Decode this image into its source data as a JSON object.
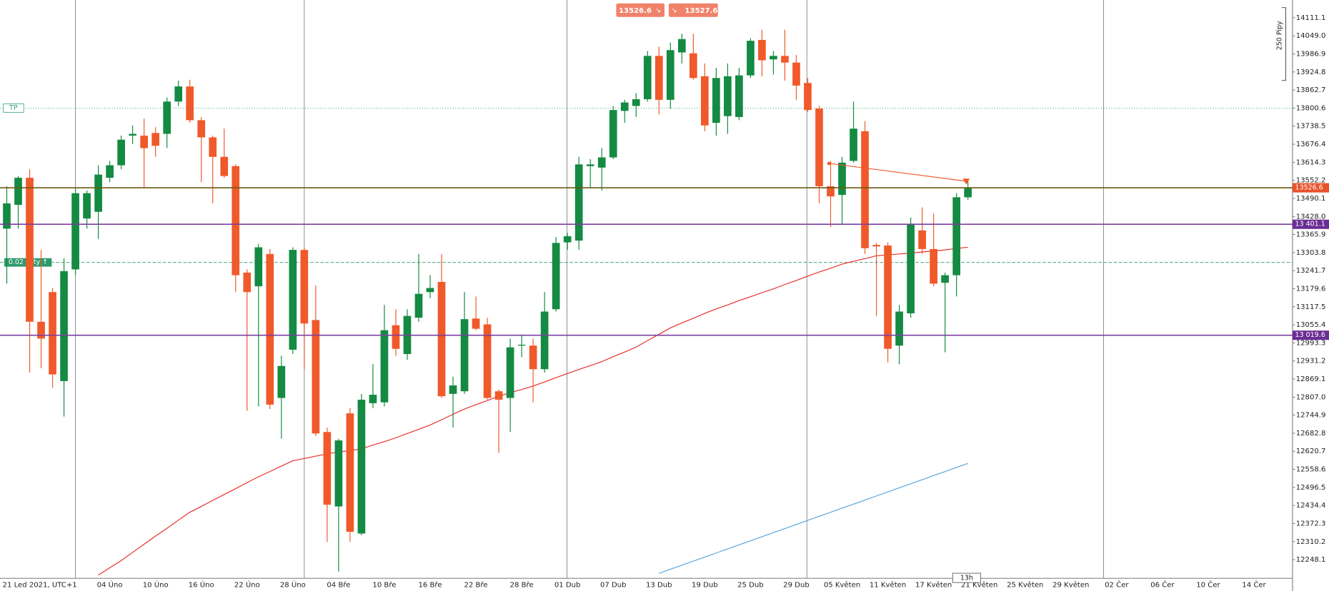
{
  "chart_data": {
    "type": "candlestick",
    "categories": [
      "21 Led 2021, UTC+1",
      null,
      null,
      null,
      null,
      null,
      null,
      null,
      null,
      "04 Úno",
      null,
      null,
      null,
      "10 Úno",
      null,
      null,
      null,
      "16 Úno",
      null,
      null,
      null,
      "22 Úno",
      null,
      null,
      null,
      "28 Úno",
      null,
      null,
      null,
      "04 Bře",
      null,
      null,
      null,
      "10 Bře",
      null,
      null,
      null,
      "16 Bře",
      null,
      null,
      null,
      "22 Bře",
      null,
      null,
      null,
      "28 Bře",
      null,
      null,
      null,
      "01 Dub",
      null,
      null,
      null,
      "07 Dub",
      null,
      null,
      null,
      "13 Dub",
      null,
      null,
      null,
      "19 Dub",
      null,
      null,
      null,
      "25 Dub",
      null,
      null,
      null,
      "29 Dub",
      null,
      null,
      null,
      "05 Květen",
      null,
      null,
      null,
      "11 Květen",
      null,
      null,
      null,
      "17 Květen",
      null,
      null,
      null,
      "21 Květen",
      null,
      null,
      null,
      "25 Květen",
      null,
      null,
      null,
      "29 Květen",
      null,
      null,
      null,
      "02 Čer",
      null,
      null,
      null,
      "06 Čer",
      null,
      null,
      null,
      "10 Čer",
      null,
      null,
      null,
      "14 Čer"
    ],
    "open": [
      13386,
      13468,
      13561,
      13066,
      13168,
      12862,
      13246,
      13421,
      13444,
      13561,
      13604,
      13706,
      13706,
      13715,
      13712,
      13823,
      13875,
      13759,
      13700,
      13633,
      13601,
      13235,
      13188,
      13299,
      12804,
      12970,
      13313,
      13072,
      12687,
      12431,
      12751,
      12338,
      12786,
      12789,
      13054,
      12955,
      13080,
      13168,
      13203,
      12818,
      12827,
      13077,
      13057,
      12827,
      12804,
      12984,
      12984,
      12903,
      13109,
      13339,
      13345,
      13601,
      13596,
      13631,
      13791,
      13808,
      13831,
      13980,
      13829,
      13992,
      13989,
      13910,
      13750,
      13773,
      13770,
      13913,
      14035,
      13968,
      13980,
      13957,
      13887,
      13799,
      13532,
      13502,
      13619,
      13721,
      13330,
      13328,
      12984,
      13095,
      13380,
      13316,
      13200,
      13226,
      13494,
      null,
      null,
      null,
      null,
      null,
      null,
      null,
      null,
      null,
      null,
      null,
      null,
      null,
      null,
      null,
      null,
      null,
      null,
      null,
      null,
      null,
      null,
      null,
      null,
      null
    ],
    "high": [
      13532,
      13567,
      13590,
      13313,
      13182,
      13284,
      13526,
      13517,
      13604,
      13619,
      13706,
      13741,
      13764,
      13735,
      13837,
      13895,
      13898,
      13770,
      13706,
      13730,
      13607,
      13246,
      13334,
      13316,
      12949,
      13322,
      13322,
      13191,
      12702,
      12664,
      12769,
      12818,
      12920,
      13124,
      13109,
      13109,
      13299,
      13226,
      13299,
      12877,
      13168,
      13153,
      13080,
      12833,
      13008,
      13022,
      13008,
      13168,
      13357,
      13371,
      13633,
      13625,
      13663,
      13808,
      13829,
      13852,
      13997,
      14012,
      14026,
      14056,
      14056,
      13954,
      13939,
      13954,
      13939,
      14041,
      14070,
      13997,
      14070,
      13983,
      13904,
      13808,
      13619,
      13633,
      13823,
      13756,
      13337,
      13339,
      13124,
      13424,
      13459,
      13438,
      13235,
      13508,
      13555,
      null,
      null,
      null,
      null,
      null,
      null,
      null,
      null,
      null,
      null,
      null,
      null,
      null,
      null,
      null,
      null,
      null,
      null,
      null,
      null,
      null,
      null,
      null,
      null,
      null
    ],
    "low": [
      13197,
      13386,
      12891,
      12906,
      12839,
      12740,
      13226,
      13386,
      13351,
      13546,
      13590,
      13677,
      13526,
      13633,
      13663,
      13808,
      13750,
      13546,
      13473,
      13561,
      13168,
      12760,
      12775,
      12766,
      12664,
      12955,
      12903,
      12673,
      12309,
      12207,
      12309,
      12332,
      12769,
      12775,
      12949,
      12935,
      13066,
      13147,
      12804,
      12702,
      12818,
      13037,
      12798,
      12615,
      12687,
      12944,
      12789,
      12891,
      13101,
      13313,
      13313,
      13526,
      13517,
      13625,
      13750,
      13770,
      13823,
      13779,
      13799,
      13954,
      13898,
      13721,
      13706,
      13712,
      13759,
      13904,
      13910,
      13916,
      13895,
      13829,
      13788,
      13473,
      13392,
      13401,
      13613,
      13299,
      13086,
      12926,
      12920,
      13080,
      13299,
      13188,
      12961,
      13153,
      13485,
      null,
      null,
      null,
      null,
      null,
      null,
      null,
      null,
      null,
      null,
      null,
      null,
      null,
      null,
      null,
      null,
      null,
      null,
      null,
      null,
      null,
      null,
      null,
      null,
      null
    ],
    "close": [
      13473,
      13561,
      13066,
      13008,
      12885,
      13240,
      13508,
      13508,
      13572,
      13604,
      13692,
      13712,
      13663,
      13671,
      13823,
      13875,
      13759,
      13700,
      13633,
      13567,
      13226,
      13168,
      13322,
      12781,
      12914,
      13313,
      13060,
      12682,
      12437,
      12658,
      12344,
      12798,
      12815,
      13037,
      12973,
      13086,
      13162,
      13182,
      12810,
      12847,
      13075,
      13042,
      12804,
      12798,
      12978,
      12987,
      12903,
      13101,
      13337,
      13360,
      13607,
      13607,
      13631,
      13794,
      13820,
      13831,
      13980,
      13829,
      14000,
      14038,
      13904,
      13741,
      13904,
      13910,
      13913,
      14032,
      13965,
      13980,
      13957,
      13878,
      13794,
      13532,
      13497,
      13613,
      13730,
      13319,
      13325,
      12973,
      13101,
      13401,
      13316,
      13197,
      13226,
      13494,
      13526.6,
      null,
      null,
      null,
      null,
      null,
      null,
      null,
      null,
      null,
      null,
      null,
      null,
      null,
      null,
      null,
      null,
      null,
      null,
      null,
      null,
      null,
      null,
      null,
      null,
      null
    ],
    "up_color": "#148a42",
    "down_color": "#f0592a",
    "series": [
      {
        "color": "#e8302a",
        "values": [
          null,
          null,
          null,
          null,
          null,
          null,
          null,
          null,
          12195,
          12220,
          12245,
          12273,
          12301,
          12329,
          12356,
          12384,
          12411,
          12431,
          12452,
          12472,
          12492,
          12513,
          12533,
          12551,
          12570,
          12588,
          12596,
          12604,
          12612,
          12618,
          12623,
          12629,
          12642,
          12654,
          12667,
          12682,
          12696,
          12711,
          12729,
          12748,
          12766,
          12781,
          12795,
          12810,
          12822,
          12833,
          12845,
          12859,
          12874,
          12888,
          12902,
          12915,
          12929,
          12946,
          12962,
          12979,
          13001,
          13023,
          13045,
          13062,
          13078,
          13095,
          13110,
          13124,
          13139,
          13152,
          13166,
          13179,
          13194,
          13208,
          13223,
          13237,
          13250,
          13264,
          13274,
          13283,
          13293,
          13296,
          13299,
          13302,
          13306,
          13309,
          13313,
          13318,
          13322,
          null,
          null,
          null,
          null,
          null,
          null,
          null,
          null,
          null,
          null,
          null,
          null,
          null,
          null,
          null,
          null,
          null,
          null,
          null,
          null,
          null,
          null,
          null,
          null,
          null
        ]
      },
      {
        "color": "#5aa6dc",
        "values": [
          null,
          null,
          null,
          null,
          null,
          null,
          null,
          null,
          null,
          null,
          null,
          null,
          null,
          null,
          null,
          null,
          null,
          null,
          null,
          null,
          null,
          null,
          null,
          null,
          null,
          null,
          null,
          null,
          null,
          null,
          null,
          null,
          null,
          null,
          null,
          null,
          null,
          null,
          null,
          null,
          null,
          null,
          null,
          null,
          null,
          null,
          null,
          null,
          null,
          null,
          null,
          null,
          null,
          null,
          null,
          null,
          null,
          12201,
          12215,
          12229,
          12243,
          12257,
          12271,
          12285,
          12299,
          12313,
          12327,
          12341,
          12355,
          12369,
          12383,
          12397,
          12411,
          12425,
          12439,
          12453,
          12467,
          12481,
          12495,
          12509,
          12523,
          12537,
          12551,
          12565,
          12579,
          null,
          null,
          null,
          null,
          null,
          null,
          null,
          null,
          null,
          null,
          null,
          null,
          null,
          null,
          null,
          null,
          null,
          null,
          null,
          null,
          null,
          null,
          null,
          null,
          null
        ]
      }
    ],
    "ylim": [
      12184,
      14172.2
    ],
    "yticks": [
      14111.1,
      {
        "value": 14049.0,
        "label": "14049.0"
      },
      13986.9,
      13924.8,
      13862.7,
      13800.6,
      13738.5,
      13676.4,
      13614.3,
      13552.2,
      13490.1,
      {
        "value": 13428.0,
        "label": "13428.0"
      },
      13365.9,
      13303.8,
      13241.7,
      13179.6,
      13117.5,
      13055.4,
      12993.3,
      12931.2,
      12869.1,
      {
        "value": 12807.0,
        "label": "12807.0"
      },
      12744.9,
      12682.8,
      12620.7,
      12558.6,
      12496.5,
      12434.4,
      12372.3,
      12310.2,
      12248.1
    ],
    "grid": false,
    "lines": [
      {
        "value": 13526.6,
        "color": "#6b5a10",
        "box_color": "#e8522a"
      },
      {
        "value": 13401.1,
        "label": "13 401.1",
        "color": "#7b3fa0",
        "box_color": "#6a2d95"
      },
      {
        "value": 13019.6,
        "label": "13 019.6",
        "color": "#7b3fa0",
        "box_color": "#6a2d95"
      }
    ],
    "take_profit": {
      "value": 13800.6,
      "label": "TP"
    },
    "position": {
      "value": 13270,
      "label": "0.02 Loty ↑"
    },
    "sell": {
      "price": "13526.6",
      "icon": "↘"
    },
    "buy": {
      "price": "13527.6",
      "icon": "↘"
    },
    "ruler": "250 Pipy",
    "timer": "13h"
  }
}
